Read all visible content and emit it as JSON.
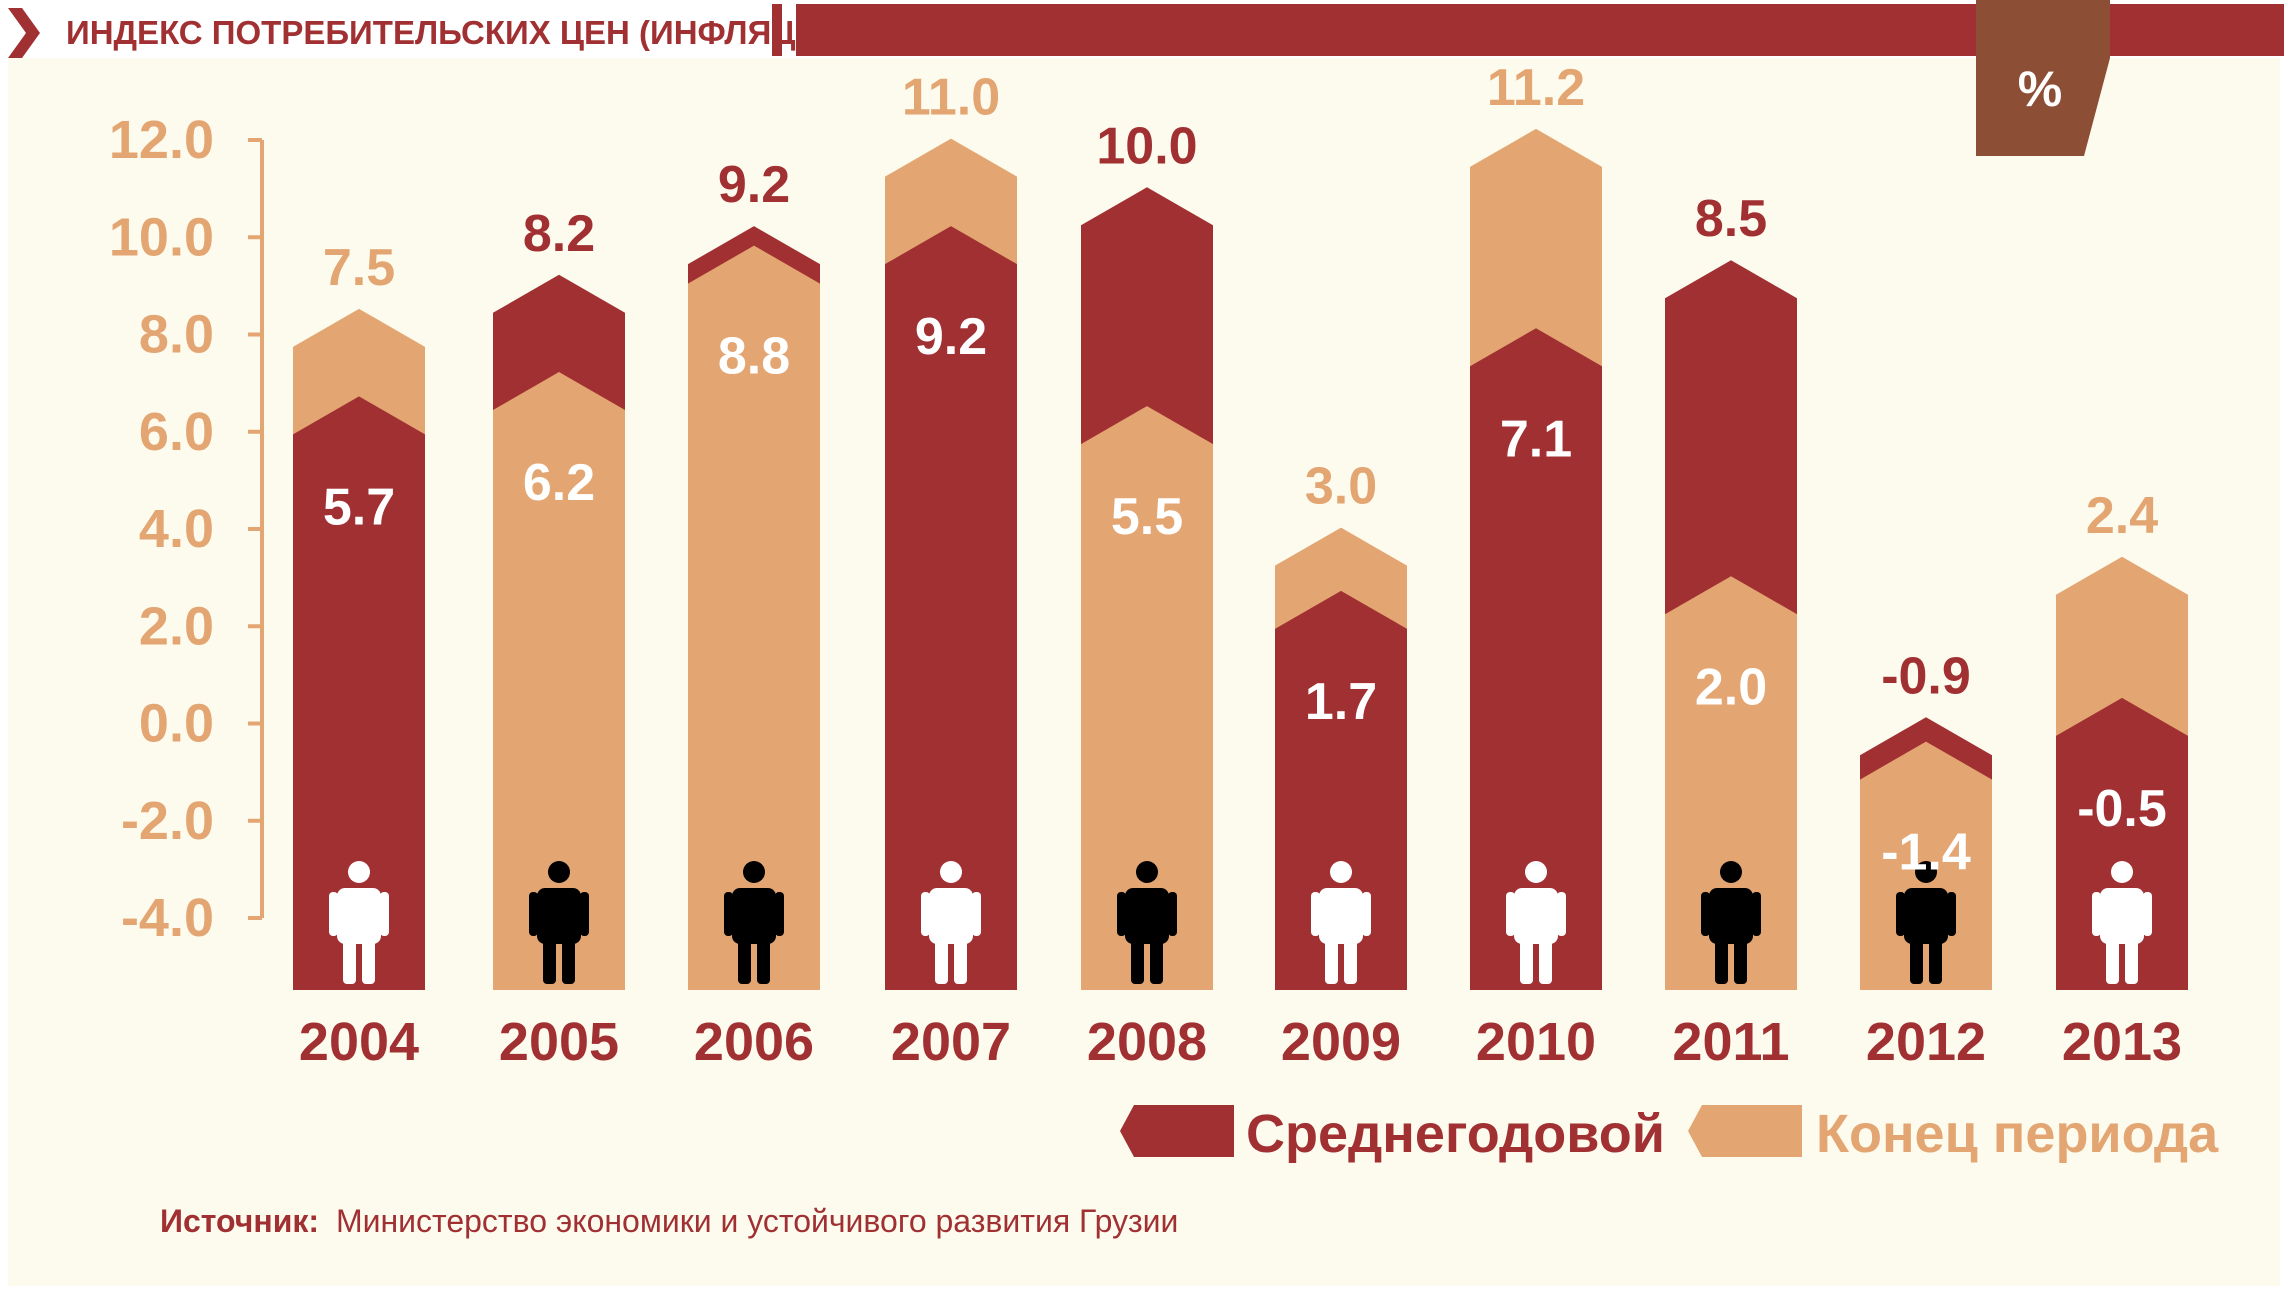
{
  "header": {
    "title": "ИНДЕКС ПОТРЕБИТЕЛЬСКИХ ЦЕН (ИНФЛЯЦИЯ)",
    "unit": "%"
  },
  "source": {
    "label": "Источник:",
    "text": "Министерство экономики и устойчивого развития Грузии"
  },
  "colors": {
    "average": "#a13033",
    "end": "#e3a571",
    "axis": "#e3a571",
    "unit_box": "#8c4e34",
    "background": "#fdfbee",
    "icon_light": "#ffffff",
    "icon_dark": "#000000"
  },
  "chart_data": {
    "type": "bar",
    "categories": [
      "2004",
      "2005",
      "2006",
      "2007",
      "2008",
      "2009",
      "2010",
      "2011",
      "2012",
      "2013"
    ],
    "series": [
      {
        "name": "Среднегодовой",
        "values": [
          5.7,
          8.2,
          9.2,
          9.2,
          10.0,
          1.7,
          7.1,
          8.5,
          -0.9,
          -0.5
        ]
      },
      {
        "name": "Конец периода",
        "values": [
          7.5,
          6.2,
          8.8,
          11.0,
          5.5,
          3.0,
          11.2,
          2.0,
          -1.4,
          2.4
        ]
      }
    ],
    "yticks": [
      "12.0",
      "10.0",
      "8.0",
      "6.0",
      "4.0",
      "2.0",
      "0.0",
      "-2.0",
      "-4.0"
    ],
    "ylim": [
      -4,
      12
    ],
    "legend_position": "bottom-right",
    "grid": false
  }
}
